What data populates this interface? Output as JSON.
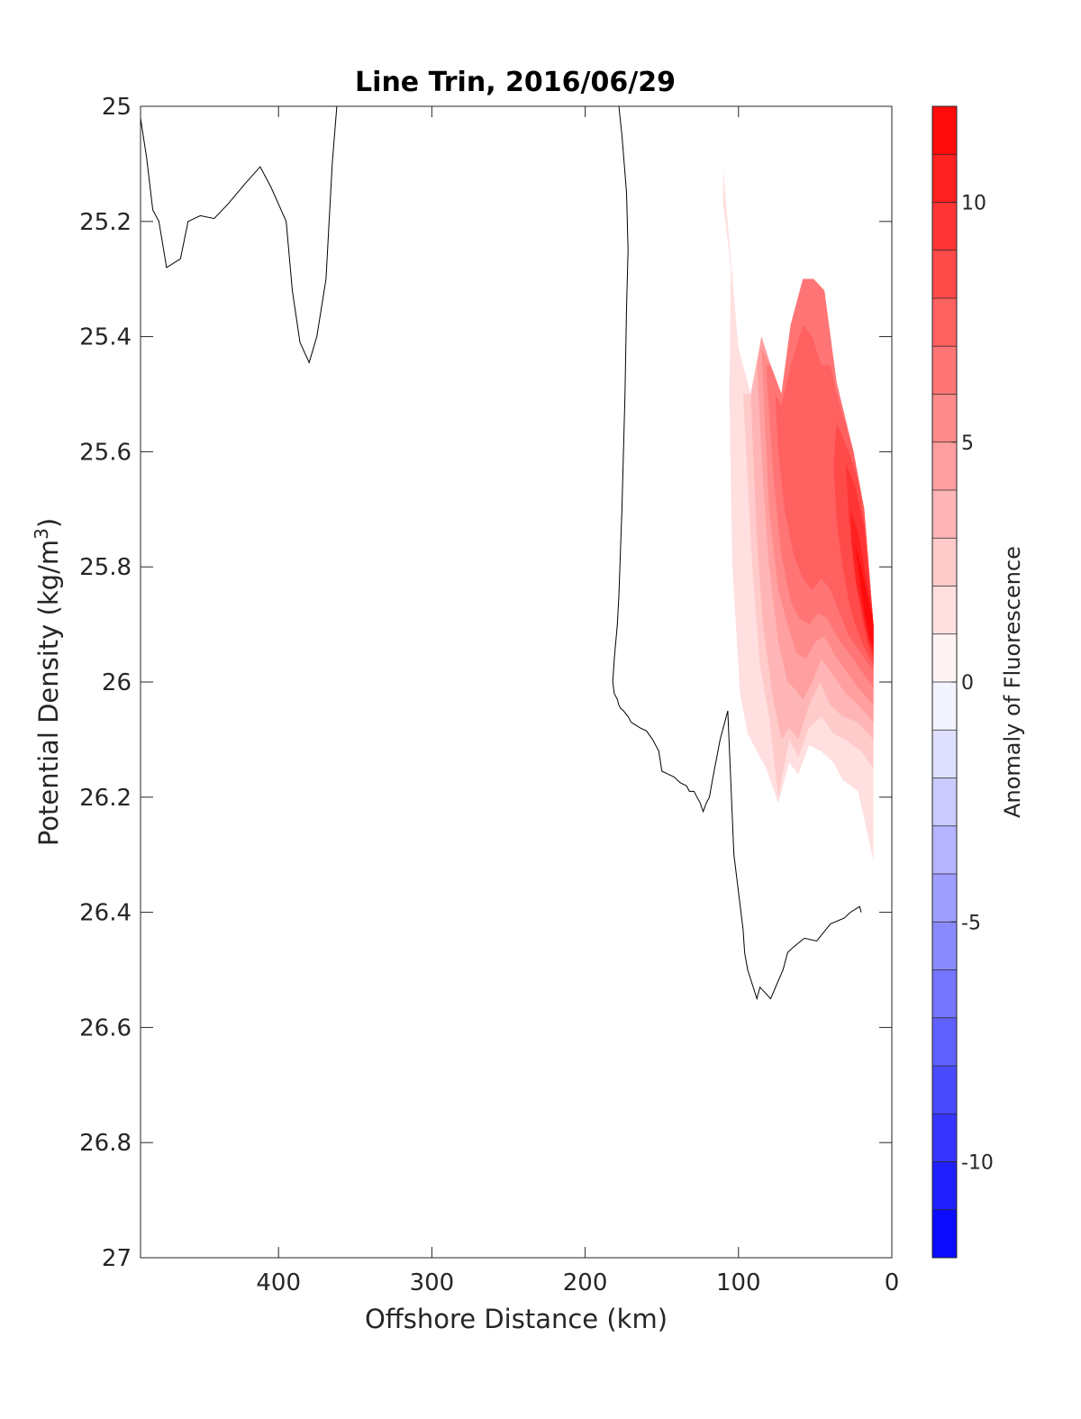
{
  "chart_data": {
    "type": "contour",
    "title": "Line Trin, 2016/06/29",
    "xlabel": "Offshore Distance (km)",
    "ylabel_base": "Potential Density (kg/m",
    "ylabel_sup": "3",
    "ylabel_close": ")",
    "xlim": [
      490,
      0
    ],
    "ylim": [
      25,
      27
    ],
    "x_reversed": true,
    "y_reversed": true,
    "xticks": [
      400,
      300,
      200,
      100,
      0
    ],
    "yticks": [
      25,
      25.2,
      25.4,
      25.6,
      25.8,
      26,
      26.2,
      26.4,
      26.6,
      26.8,
      27
    ],
    "ytick_labels": [
      "25",
      "25.2",
      "25.4",
      "25.6",
      "25.8",
      "26",
      "26.2",
      "26.4",
      "26.6",
      "26.8",
      "27"
    ],
    "colorbar": {
      "label": "Anomaly of Fluorescence",
      "range": [
        -12,
        12
      ],
      "levels": [
        -12,
        -11,
        -10,
        -9,
        -8,
        -7,
        -6,
        -5,
        -4,
        -3,
        -2,
        -1,
        0,
        1,
        2,
        3,
        4,
        5,
        6,
        7,
        8,
        9,
        10,
        11,
        12
      ],
      "ticks": [
        10,
        5,
        0,
        -5,
        -10
      ],
      "tick_labels": [
        "10",
        "5",
        "0",
        "-5",
        "-10"
      ],
      "neg_color": "#0000ff",
      "pos_color": "#ff0000"
    },
    "zero_contour": [
      {
        "x": [
          490,
          486,
          482,
          478,
          473,
          464,
          459,
          451,
          442,
          433,
          422,
          412,
          405,
          400,
          395,
          391,
          386,
          380,
          375,
          369,
          365,
          362
        ],
        "y": [
          25.02,
          25.09,
          25.18,
          25.2,
          25.28,
          25.265,
          25.2,
          25.19,
          25.195,
          25.17,
          25.135,
          25.105,
          25.14,
          25.17,
          25.2,
          25.32,
          25.41,
          25.445,
          25.4,
          25.3,
          25.1,
          25
        ]
      },
      {
        "x": [
          178,
          176,
          173,
          172,
          173,
          174,
          176,
          178,
          179,
          181,
          182,
          181,
          179,
          178,
          177,
          175,
          172,
          170,
          167,
          164,
          160,
          156,
          152,
          150,
          146,
          142,
          138,
          134,
          132,
          129,
          127,
          125,
          123,
          121,
          119,
          117,
          112,
          107,
          103,
          97,
          96,
          94,
          88,
          86,
          79,
          71,
          68,
          64,
          57,
          49,
          40,
          31,
          27,
          21,
          20
        ],
        "y": [
          25,
          25.05,
          25.15,
          25.25,
          25.35,
          25.5,
          25.7,
          25.85,
          25.9,
          25.96,
          26,
          26.02,
          26.03,
          26.04,
          26.045,
          26.05,
          26.06,
          26.07,
          26.075,
          26.08,
          26.085,
          26.1,
          26.12,
          26.155,
          26.16,
          26.165,
          26.175,
          26.18,
          26.19,
          26.19,
          26.2,
          26.21,
          26.225,
          26.21,
          26.2,
          26.17,
          26.1,
          26.05,
          26.3,
          26.43,
          26.47,
          26.5,
          26.55,
          26.53,
          26.55,
          26.5,
          26.47,
          26.46,
          26.445,
          26.45,
          26.42,
          26.41,
          26.4,
          26.39,
          26.4
        ]
      }
    ],
    "filled_regions": [
      {
        "level": 1,
        "x": [
          105,
          110,
          110,
          100,
          92,
          85,
          79,
          72,
          66,
          58,
          51,
          44,
          36,
          25,
          18,
          12,
          12,
          22,
          32,
          38,
          46,
          54,
          61,
          67,
          74,
          82,
          88,
          94,
          99,
          104,
          106
        ],
        "y": [
          25.28,
          25.17,
          25.11,
          25.42,
          25.5,
          25.4,
          25.45,
          25.5,
          25.38,
          25.3,
          25.3,
          25.32,
          25.48,
          25.6,
          25.7,
          25.9,
          26.31,
          26.19,
          26.17,
          26.14,
          26.12,
          26.11,
          26.16,
          26.14,
          26.21,
          26.15,
          26.12,
          26.09,
          26.02,
          25.8,
          25.5
        ]
      },
      {
        "level": 2,
        "x": [
          97,
          92,
          85,
          79,
          72,
          66,
          58,
          51,
          44,
          36,
          25,
          18,
          12,
          12,
          20,
          30,
          38,
          46,
          54,
          61,
          67,
          74,
          80,
          86,
          91,
          95,
          97
        ],
        "y": [
          25.5,
          25.5,
          25.4,
          25.45,
          25.5,
          25.38,
          25.3,
          25.3,
          25.32,
          25.48,
          25.6,
          25.7,
          25.9,
          26.15,
          26.12,
          26.1,
          26.09,
          26.06,
          26.08,
          26.13,
          26.1,
          26.2,
          26.06,
          25.97,
          25.8,
          25.6,
          25.5
        ]
      },
      {
        "level": 3,
        "x": [
          92,
          85,
          79,
          72,
          66,
          58,
          51,
          44,
          36,
          25,
          18,
          12,
          12,
          22,
          32,
          40,
          47,
          54,
          61,
          67,
          72,
          78,
          84,
          88,
          92
        ],
        "y": [
          25.5,
          25.4,
          25.45,
          25.5,
          25.38,
          25.3,
          25.3,
          25.32,
          25.48,
          25.6,
          25.7,
          25.9,
          26.1,
          26.07,
          26.06,
          26.04,
          26.0,
          26.04,
          26.1,
          26.08,
          26.1,
          26.02,
          25.9,
          25.75,
          25.5
        ]
      },
      {
        "level": 4,
        "x": [
          88,
          85,
          79,
          72,
          66,
          58,
          51,
          44,
          36,
          25,
          18,
          12,
          12,
          22,
          30,
          38,
          46,
          52,
          58,
          64,
          68,
          74,
          80,
          84,
          88
        ],
        "y": [
          25.45,
          25.4,
          25.45,
          25.5,
          25.38,
          25.3,
          25.3,
          25.32,
          25.48,
          25.6,
          25.7,
          25.9,
          26.07,
          26.04,
          26.02,
          25.99,
          25.96,
          26.0,
          26.03,
          26.01,
          26.0,
          25.93,
          25.8,
          25.65,
          25.45
        ]
      },
      {
        "level": 5,
        "x": [
          85,
          79,
          72,
          66,
          58,
          51,
          44,
          36,
          25,
          18,
          12,
          12,
          22,
          30,
          38,
          44,
          50,
          56,
          62,
          68,
          74,
          80,
          85
        ],
        "y": [
          25.42,
          25.45,
          25.5,
          25.38,
          25.3,
          25.3,
          25.32,
          25.48,
          25.6,
          25.7,
          25.9,
          26.04,
          26.01,
          25.98,
          25.95,
          25.92,
          25.93,
          25.96,
          25.95,
          25.9,
          25.84,
          25.7,
          25.42
        ]
      },
      {
        "level": 6,
        "x": [
          82,
          79,
          72,
          66,
          58,
          51,
          44,
          36,
          25,
          18,
          12,
          12,
          20,
          28,
          36,
          42,
          48,
          54,
          60,
          66,
          72,
          77,
          82
        ],
        "y": [
          25.45,
          25.45,
          25.5,
          25.38,
          25.3,
          25.3,
          25.32,
          25.48,
          25.6,
          25.7,
          25.9,
          26.01,
          25.98,
          25.95,
          25.92,
          25.89,
          25.88,
          25.9,
          25.89,
          25.86,
          25.78,
          25.65,
          25.45
        ]
      },
      {
        "level": 7,
        "x": [
          76,
          72,
          66,
          58,
          52,
          46,
          40,
          36,
          25,
          18,
          12,
          12,
          20,
          28,
          34,
          40,
          46,
          52,
          58,
          64,
          70,
          74,
          76
        ],
        "y": [
          25.5,
          25.52,
          25.45,
          25.38,
          25.4,
          25.45,
          25.45,
          25.5,
          25.6,
          25.7,
          25.9,
          25.98,
          25.95,
          25.92,
          25.88,
          25.84,
          25.82,
          25.84,
          25.82,
          25.78,
          25.7,
          25.6,
          25.5
        ]
      },
      {
        "level": 8,
        "x": [
          36,
          28,
          22,
          18,
          12,
          12,
          18,
          24,
          28,
          32,
          36,
          38,
          36
        ],
        "y": [
          25.55,
          25.6,
          25.65,
          25.72,
          25.9,
          25.97,
          25.94,
          25.9,
          25.86,
          25.8,
          25.72,
          25.62,
          25.55
        ]
      },
      {
        "level": 9,
        "x": [
          30,
          24,
          18,
          14,
          12,
          12,
          16,
          20,
          24,
          28,
          30
        ],
        "y": [
          25.62,
          25.66,
          25.73,
          25.84,
          25.9,
          25.96,
          25.93,
          25.88,
          25.82,
          25.72,
          25.62
        ]
      },
      {
        "level": 10,
        "x": [
          27,
          22,
          18,
          14,
          12,
          12,
          15,
          19,
          23,
          26,
          27
        ],
        "y": [
          25.7,
          25.74,
          25.8,
          25.86,
          25.9,
          25.95,
          25.93,
          25.88,
          25.83,
          25.76,
          25.7
        ]
      },
      {
        "level": 11,
        "x": [
          24,
          20,
          16,
          13,
          12,
          12,
          15,
          18,
          21,
          24
        ],
        "y": [
          25.76,
          25.8,
          25.85,
          25.88,
          25.9,
          25.94,
          25.92,
          25.88,
          25.82,
          25.76
        ]
      }
    ]
  }
}
